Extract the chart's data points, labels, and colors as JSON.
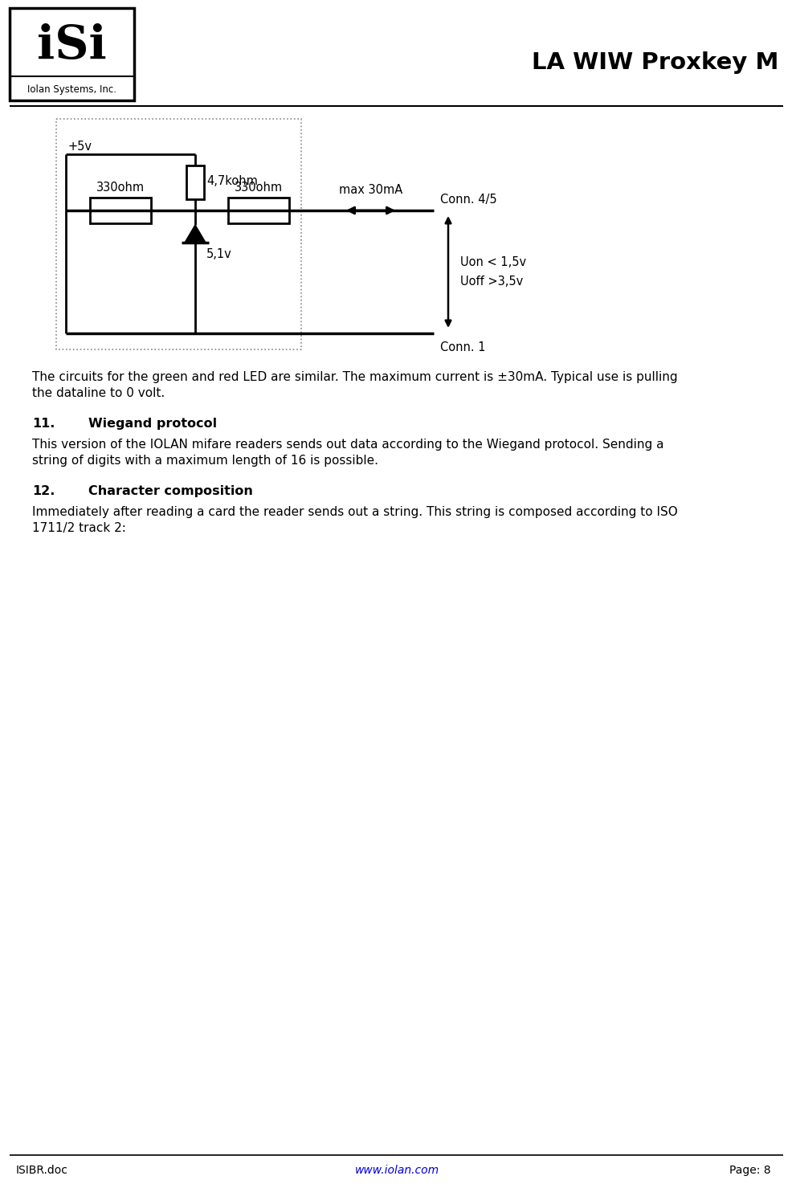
{
  "title": "LA WIW Proxkey M",
  "logo_company": "Iolan Systems, Inc.",
  "footer_left": "ISIBR.doc",
  "footer_center": "www.iolan.com",
  "footer_right": "Page: 8",
  "circuit_label_5v": "+5v",
  "circuit_label_47k": "4,7kohm",
  "circuit_label_330_left": "330ohm",
  "circuit_label_330_right": "330ohm",
  "circuit_label_max": "max 30mA",
  "circuit_label_conn45": "Conn. 4/5",
  "circuit_label_uon": "Uon < 1,5v",
  "circuit_label_uoff": "Uoff >3,5v",
  "circuit_label_51v": "5,1v",
  "circuit_label_conn1": "Conn. 1",
  "para1_line1": "The circuits for the green and red LED are similar. The maximum current is ±30mA. Typical use is pulling",
  "para1_line2": "the dataline to 0 volt.",
  "sec11_num": "11.",
  "sec11_head": "Wiegand protocol",
  "sec11_line1": "This version of the IOLAN mifare readers sends out data according to the Wiegand protocol. Sending a",
  "sec11_line2": "string of digits with a maximum length of 16 is possible.",
  "sec12_num": "12.",
  "sec12_head": "Character composition",
  "sec12_line1": "Immediately after reading a card the reader sends out a string. This string is composed according to ISO",
  "sec12_line2": "1711/2 track 2:",
  "bg_color": "#ffffff",
  "text_color": "#000000",
  "footer_center_color": "#0000cc"
}
